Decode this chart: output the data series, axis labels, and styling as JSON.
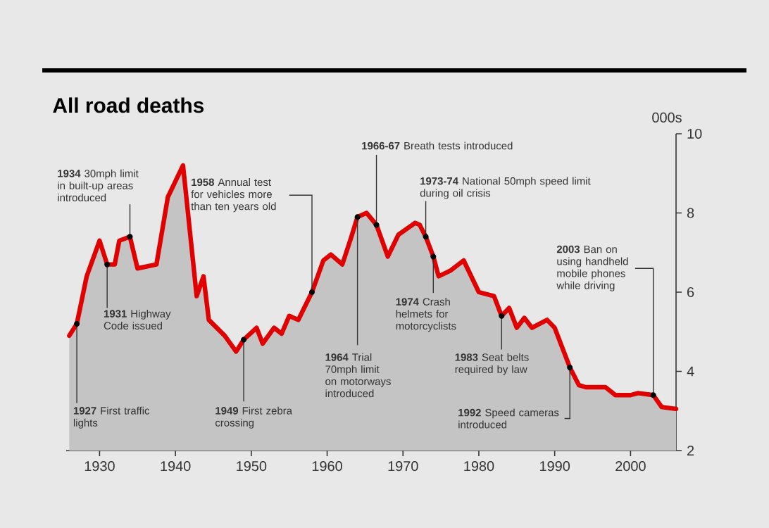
{
  "chart_data": {
    "type": "area",
    "title": "All road deaths",
    "ylabel": "000s",
    "x": [
      1926,
      1927,
      1928.3,
      1930,
      1931,
      1932,
      1932.6,
      1934,
      1935,
      1937.5,
      1939,
      1941,
      1942.2,
      1942.8,
      1943.7,
      1944.4,
      1946.5,
      1948,
      1949,
      1950.7,
      1951.5,
      1953,
      1954,
      1955,
      1956.2,
      1958,
      1959.5,
      1960.5,
      1962,
      1963.2,
      1964,
      1965.2,
      1966.5,
      1968,
      1969.4,
      1971.6,
      1972.2,
      1973,
      1974,
      1974.7,
      1976.3,
      1978,
      1980,
      1982,
      1983,
      1984,
      1985,
      1986,
      1987,
      1989,
      1990,
      1992,
      1993.2,
      1994.1,
      1996.7,
      1998,
      2000,
      2001,
      2003,
      2004.1,
      2006
    ],
    "series": [
      {
        "color": "#e00000",
        "values": [
          4.9,
          5.2,
          6.4,
          7.3,
          6.7,
          6.7,
          7.3,
          7.4,
          6.6,
          6.7,
          8.4,
          9.2,
          7.0,
          5.9,
          6.4,
          5.3,
          4.9,
          4.5,
          4.8,
          5.1,
          4.7,
          5.1,
          4.95,
          5.4,
          5.3,
          6.0,
          6.8,
          6.95,
          6.7,
          7.4,
          7.9,
          8.0,
          7.7,
          6.9,
          7.45,
          7.75,
          7.7,
          7.4,
          6.9,
          6.4,
          6.55,
          6.8,
          6.0,
          5.9,
          5.4,
          5.6,
          5.1,
          5.35,
          5.1,
          5.3,
          5.1,
          4.1,
          3.65,
          3.6,
          3.6,
          3.4,
          3.4,
          3.45,
          3.4,
          3.1,
          3.05
        ]
      }
    ],
    "xlim": [
      1925.6,
      2006
    ],
    "ylim": [
      2,
      10
    ],
    "xticks": [
      1930,
      1940,
      1950,
      1960,
      1970,
      1980,
      1990,
      2000
    ],
    "yticks": [
      2,
      4,
      6,
      8,
      10
    ],
    "annotations": [
      {
        "text": "**1927** First traffic lights",
        "x": 1927,
        "y": 5.2
      },
      {
        "text": "**1931** Highway Code issued",
        "x": 1931,
        "y": 6.7
      },
      {
        "text": "**1934** 30mph limit in built-up areas introduced",
        "x": 1934,
        "y": 7.4
      },
      {
        "text": "**1949** First zebra crossing",
        "x": 1949,
        "y": 4.8
      },
      {
        "text": "**1958** Annual test for vehicles more than ten years old",
        "x": 1958,
        "y": 6.0
      },
      {
        "text": "**1964** Trial 70mph limit on motorways introduced",
        "x": 1964,
        "y": 7.9
      },
      {
        "text": "**1966-67** Breath tests introduced",
        "x": 1966.5,
        "y": 7.7
      },
      {
        "text": "**1973-74** National 50mph speed limit during oil crisis",
        "x": 1973,
        "y": 7.4
      },
      {
        "text": "**1974** Crash helmets for motorcyclists",
        "x": 1974,
        "y": 6.9
      },
      {
        "text": "**1983** Seat belts required by law",
        "x": 1983,
        "y": 5.4
      },
      {
        "text": "**1992** Speed cameras introduced",
        "x": 1992,
        "y": 4.1
      },
      {
        "text": "**2003** Ban on using handheld mobile phones while driving",
        "x": 2003,
        "y": 3.4
      }
    ]
  }
}
